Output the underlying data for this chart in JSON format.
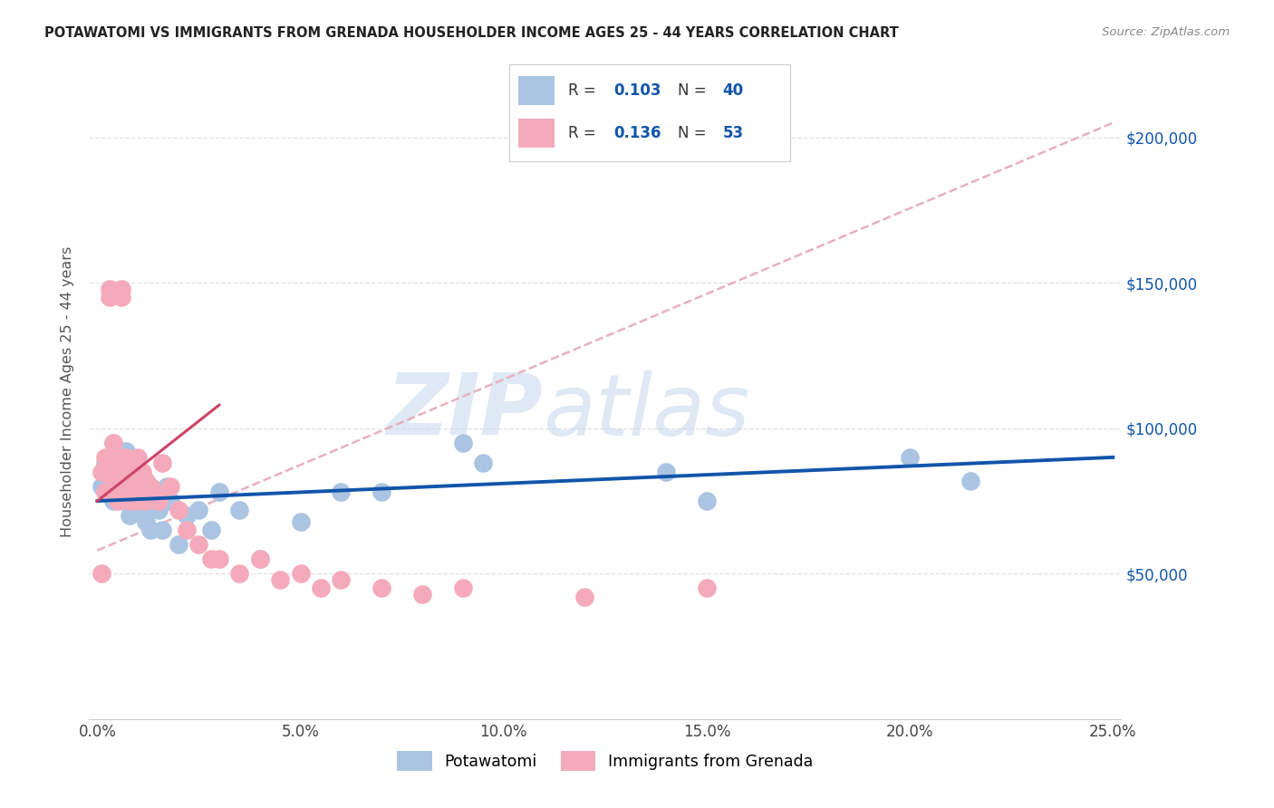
{
  "title": "POTAWATOMI VS IMMIGRANTS FROM GRENADA HOUSEHOLDER INCOME AGES 25 - 44 YEARS CORRELATION CHART",
  "source": "Source: ZipAtlas.com",
  "ylabel": "Householder Income Ages 25 - 44 years",
  "xlabel_ticks": [
    "0.0%",
    "5.0%",
    "10.0%",
    "15.0%",
    "20.0%",
    "25.0%"
  ],
  "xlabel_vals": [
    0.0,
    0.05,
    0.1,
    0.15,
    0.2,
    0.25
  ],
  "ytick_labels": [
    "$50,000",
    "$100,000",
    "$150,000",
    "$200,000"
  ],
  "ytick_vals": [
    50000,
    100000,
    150000,
    200000
  ],
  "xlim": [
    -0.002,
    0.252
  ],
  "ylim": [
    0,
    225000
  ],
  "blue_scatter_color": "#aac4e2",
  "pink_scatter_color": "#f5aabc",
  "blue_line_color": "#1155aa",
  "pink_line_color": "#cc4466",
  "dashed_line_color": "#e8b0be",
  "rn_text_color": "#1155aa",
  "label_text_color": "#555555",
  "grid_color": "#e0e0e0",
  "blue_scatter_x": [
    0.001,
    0.002,
    0.003,
    0.003,
    0.004,
    0.004,
    0.005,
    0.005,
    0.006,
    0.007,
    0.007,
    0.008,
    0.008,
    0.009,
    0.01,
    0.01,
    0.011,
    0.012,
    0.013,
    0.014,
    0.015,
    0.016,
    0.017,
    0.018,
    0.02,
    0.022,
    0.025,
    0.028,
    0.03,
    0.035,
    0.04,
    0.05,
    0.06,
    0.07,
    0.09,
    0.095,
    0.14,
    0.15,
    0.2,
    0.215
  ],
  "blue_scatter_y": [
    80000,
    88000,
    82000,
    90000,
    75000,
    95000,
    78000,
    85000,
    80000,
    92000,
    75000,
    85000,
    70000,
    78000,
    82000,
    75000,
    72000,
    68000,
    65000,
    78000,
    72000,
    65000,
    80000,
    75000,
    60000,
    70000,
    72000,
    65000,
    78000,
    72000,
    55000,
    68000,
    78000,
    78000,
    95000,
    88000,
    85000,
    75000,
    90000,
    82000
  ],
  "pink_scatter_x": [
    0.001,
    0.001,
    0.002,
    0.002,
    0.003,
    0.003,
    0.003,
    0.004,
    0.004,
    0.004,
    0.005,
    0.005,
    0.005,
    0.005,
    0.006,
    0.006,
    0.006,
    0.007,
    0.007,
    0.007,
    0.008,
    0.008,
    0.008,
    0.009,
    0.009,
    0.01,
    0.01,
    0.01,
    0.011,
    0.011,
    0.012,
    0.012,
    0.013,
    0.014,
    0.015,
    0.016,
    0.018,
    0.02,
    0.022,
    0.025,
    0.028,
    0.03,
    0.035,
    0.04,
    0.045,
    0.05,
    0.055,
    0.06,
    0.07,
    0.08,
    0.09,
    0.12,
    0.15
  ],
  "pink_scatter_y": [
    50000,
    85000,
    90000,
    78000,
    148000,
    145000,
    88000,
    88000,
    82000,
    95000,
    90000,
    85000,
    80000,
    75000,
    148000,
    145000,
    78000,
    90000,
    85000,
    80000,
    88000,
    80000,
    75000,
    85000,
    78000,
    90000,
    82000,
    75000,
    85000,
    78000,
    82000,
    75000,
    80000,
    78000,
    75000,
    88000,
    80000,
    72000,
    65000,
    60000,
    55000,
    55000,
    50000,
    55000,
    48000,
    50000,
    45000,
    48000,
    45000,
    43000,
    45000,
    42000,
    45000
  ],
  "blue_line_x": [
    0.0,
    0.25
  ],
  "blue_line_y": [
    75000,
    90000
  ],
  "pink_line_x": [
    0.0,
    0.03
  ],
  "pink_line_y": [
    75000,
    108000
  ],
  "dashed_line_x": [
    0.0,
    0.25
  ],
  "dashed_line_y": [
    58000,
    205000
  ]
}
